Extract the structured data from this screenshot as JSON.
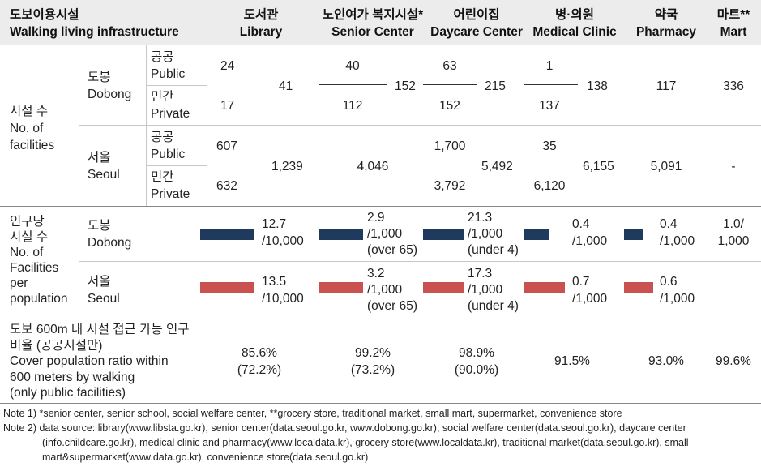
{
  "header": {
    "corner_ko": "도보이용시설",
    "corner_en": "Walking living infrastructure",
    "cols": [
      {
        "ko": "도서관",
        "en": "Library"
      },
      {
        "ko": "노인여가 복지시설*",
        "en": "Senior Center"
      },
      {
        "ko": "어린이집",
        "en": "Daycare Center"
      },
      {
        "ko": "병·의원",
        "en": "Medical Clinic"
      },
      {
        "ko": "약국",
        "en": "Pharmacy"
      },
      {
        "ko": "마트**",
        "en": "Mart"
      }
    ]
  },
  "facilities": {
    "label": [
      "시설 수",
      "No. of",
      "facilities"
    ],
    "public": [
      "공공",
      "Public"
    ],
    "private": [
      "민간",
      "Private"
    ],
    "dobong": {
      "label": [
        "도봉",
        "Dobong"
      ],
      "library": {
        "public": "24",
        "private": "17",
        "total": "41"
      },
      "senior": {
        "public": "40",
        "private": "112",
        "total": "152"
      },
      "daycare": {
        "public": "63",
        "private": "152",
        "total": "215"
      },
      "clinic": {
        "public": "1",
        "private": "137",
        "total": "138"
      },
      "pharmacy": "117",
      "mart": "336"
    },
    "seoul": {
      "label": [
        "서울",
        "Seoul"
      ],
      "library": {
        "public": "607",
        "private": "632",
        "total": "1,239"
      },
      "senior": "4,046",
      "daycare": {
        "public": "1,700",
        "private": "3,792",
        "total": "5,492"
      },
      "clinic": {
        "public": "35",
        "private": "6,120",
        "total": "6,155"
      },
      "pharmacy": "5,091",
      "mart": "-"
    }
  },
  "per_population": {
    "label": [
      "인구당",
      "시설 수",
      "No. of",
      "Facilities",
      "per",
      "population"
    ],
    "dobong": {
      "label": [
        "도봉",
        "Dobong"
      ],
      "library": [
        "12.7",
        "/10,000"
      ],
      "senior": [
        "2.9",
        "/1,000",
        "(over 65)"
      ],
      "daycare": [
        "21.3",
        "/1,000",
        "(under 4)"
      ],
      "clinic": [
        "0.4",
        "/1,000"
      ],
      "pharmacy": [
        "0.4",
        "/1,000"
      ],
      "mart": [
        "1.0/",
        "1,000"
      ]
    },
    "seoul": {
      "label": [
        "서울",
        "Seoul"
      ],
      "library": [
        "13.5",
        "/10,000"
      ],
      "senior": [
        "3.2",
        "/1,000",
        "(over 65)"
      ],
      "daycare": [
        "17.3",
        "/1,000",
        "(under 4)"
      ],
      "clinic": [
        "0.7",
        "/1,000"
      ],
      "pharmacy": [
        "0.6",
        "/1,000"
      ]
    }
  },
  "coverage": {
    "label": [
      "도보 600m 내 시설 접근 가능 인구",
      "비율 (공공시설만)",
      "Cover population ratio within",
      "600 meters by walking",
      "(only public facilities)"
    ],
    "library": [
      "85.6%",
      "(72.2%)"
    ],
    "senior": [
      "99.2%",
      "(73.2%)"
    ],
    "daycare": [
      "98.9%",
      "(90.0%)"
    ],
    "clinic": "91.5%",
    "pharmacy": "93.0%",
    "mart": "99.6%"
  },
  "notes": [
    "Note 1) *senior center, senior school, social welfare center, **grocery store, traditional market, small mart, supermarket, convenience store",
    "Note 2) data source: library(www.libsta.go.kr), senior center(data.seoul.go.kr, www.dobong.go.kr), social welfare center(data.seoul.go.kr), daycare center",
    "(info.childcare.go.kr), medical clinic and pharmacy(www.localdata.kr), grocery store(www.localdata.kr), traditional market(data.seoul.go.kr), small",
    "mart&supermarket(www.data.go.kr), convenience store(data.seoul.go.kr)"
  ],
  "colors": {
    "dobong_bar": "#1f3a5c",
    "seoul_bar": "#c9514f",
    "header_bg": "#ececec"
  }
}
